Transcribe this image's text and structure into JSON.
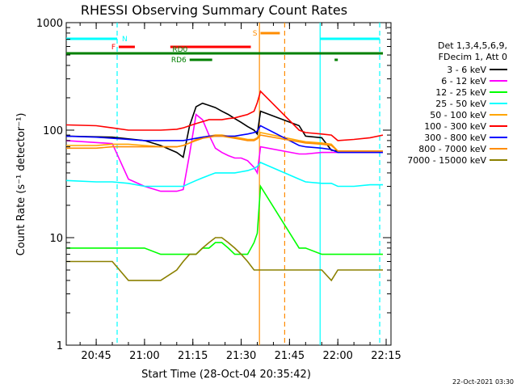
{
  "chart_data": {
    "type": "line",
    "title": "RHESSI Observing Summary Count Rates",
    "xlabel": "Start Time (28-Oct-04 20:35:42)",
    "ylabel": "Count Rate (s⁻¹ detector⁻¹)",
    "xlim": [
      "20:35:42",
      "22:16:30"
    ],
    "ylim": [
      1,
      1000
    ],
    "yscale": "log",
    "grid": false,
    "legend_position": "right",
    "x_ticks": [
      "20:45",
      "21:00",
      "21:15",
      "21:30",
      "21:45",
      "22:00",
      "22:15"
    ],
    "y_ticks": [
      "1",
      "10",
      "100",
      "1000"
    ],
    "legend_header": [
      "Det 1,3,4,5,6,9,",
      "FDecim 1, Att 0"
    ],
    "footer_date": "22-Oct-2021 03:30",
    "series": [
      {
        "name": "3 - 6 keV",
        "color": "#000000",
        "x": [
          "20:35:42",
          "20:50",
          "20:55",
          "21:00",
          "21:05",
          "21:10",
          "21:12",
          "21:14",
          "21:16",
          "21:18",
          "21:20",
          "21:22",
          "21:24",
          "21:26",
          "21:28",
          "21:30",
          "21:32",
          "21:34",
          "21:35",
          "21:36",
          "21:48",
          "21:50",
          "21:55",
          "21:58",
          "22:00",
          "22:05",
          "22:10",
          "22:14"
        ],
        "y": [
          88,
          86,
          83,
          80,
          72,
          62,
          56,
          110,
          165,
          178,
          170,
          162,
          150,
          140,
          128,
          118,
          108,
          100,
          92,
          150,
          110,
          88,
          85,
          65,
          64,
          64,
          64,
          64
        ]
      },
      {
        "name": "6 - 12 keV",
        "color": "#ff00ff",
        "x": [
          "20:35:42",
          "20:50",
          "20:55",
          "21:00",
          "21:05",
          "21:10",
          "21:12",
          "21:14",
          "21:16",
          "21:18",
          "21:20",
          "21:22",
          "21:24",
          "21:26",
          "21:28",
          "21:30",
          "21:32",
          "21:34",
          "21:35",
          "21:36",
          "21:48",
          "21:50",
          "21:55",
          "21:58",
          "22:00",
          "22:05",
          "22:10",
          "22:14"
        ],
        "y": [
          80,
          75,
          35,
          30,
          27,
          27,
          28,
          60,
          140,
          125,
          90,
          68,
          62,
          58,
          55,
          55,
          52,
          45,
          40,
          70,
          60,
          60,
          62,
          62,
          62,
          62,
          62,
          62
        ]
      },
      {
        "name": "12 - 25 keV",
        "color": "#00ff00",
        "x": [
          "20:35:42",
          "20:45",
          "20:50",
          "20:55",
          "21:00",
          "21:05",
          "21:10",
          "21:12",
          "21:14",
          "21:16",
          "21:18",
          "21:20",
          "21:22",
          "21:24",
          "21:26",
          "21:28",
          "21:30",
          "21:32",
          "21:34",
          "21:35",
          "21:36",
          "21:48",
          "21:50",
          "21:55",
          "21:58",
          "22:00",
          "22:05",
          "22:10",
          "22:14"
        ],
        "y": [
          8,
          8,
          8,
          8,
          8,
          7,
          7,
          7,
          7,
          7,
          8,
          8,
          9,
          9,
          8,
          7,
          7,
          7,
          9,
          11,
          30,
          8,
          8,
          7,
          7,
          7,
          7,
          7,
          7
        ]
      },
      {
        "name": "25 - 50 keV",
        "color": "#00ffff",
        "x": [
          "20:35:42",
          "20:45",
          "20:50",
          "20:55",
          "21:00",
          "21:05",
          "21:10",
          "21:12",
          "21:14",
          "21:16",
          "21:18",
          "21:20",
          "21:22",
          "21:24",
          "21:26",
          "21:28",
          "21:30",
          "21:32",
          "21:34",
          "21:35",
          "21:36",
          "21:48",
          "21:50",
          "21:55",
          "21:58",
          "22:00",
          "22:05",
          "22:10",
          "22:14"
        ],
        "y": [
          34,
          33,
          33,
          32,
          30,
          30,
          30,
          30,
          32,
          34,
          36,
          38,
          40,
          40,
          40,
          40,
          41,
          42,
          44,
          46,
          50,
          35,
          33,
          32,
          32,
          30,
          30,
          31,
          31
        ]
      },
      {
        "name": "50 - 100 keV",
        "color": "#ffa500",
        "x": [
          "20:35:42",
          "20:45",
          "20:50",
          "20:55",
          "21:00",
          "21:05",
          "21:10",
          "21:12",
          "21:14",
          "21:16",
          "21:18",
          "21:20",
          "21:22",
          "21:24",
          "21:26",
          "21:28",
          "21:30",
          "21:32",
          "21:34",
          "21:35",
          "21:36",
          "21:48",
          "21:50",
          "21:55",
          "21:58",
          "22:00",
          "22:05",
          "22:10",
          "22:14"
        ],
        "y": [
          72,
          72,
          74,
          74,
          72,
          70,
          70,
          72,
          76,
          82,
          86,
          88,
          90,
          90,
          88,
          86,
          84,
          82,
          82,
          85,
          95,
          80,
          78,
          76,
          74,
          64,
          64,
          64,
          64
        ]
      },
      {
        "name": "100 - 300 keV",
        "color": "#ff0000",
        "x": [
          "20:35:42",
          "20:45",
          "20:50",
          "20:55",
          "21:00",
          "21:05",
          "21:10",
          "21:12",
          "21:14",
          "21:16",
          "21:18",
          "21:20",
          "21:22",
          "21:24",
          "21:26",
          "21:28",
          "21:30",
          "21:32",
          "21:34",
          "21:35",
          "21:36",
          "21:48",
          "21:50",
          "21:55",
          "21:58",
          "22:00",
          "22:05",
          "22:10",
          "22:14"
        ],
        "y": [
          112,
          110,
          105,
          100,
          100,
          100,
          102,
          105,
          110,
          115,
          120,
          125,
          125,
          125,
          128,
          130,
          135,
          140,
          150,
          180,
          230,
          100,
          95,
          92,
          90,
          80,
          82,
          85,
          90
        ]
      },
      {
        "name": "300 - 800 keV",
        "color": "#0000ff",
        "x": [
          "20:35:42",
          "20:45",
          "20:50",
          "20:55",
          "21:00",
          "21:05",
          "21:10",
          "21:12",
          "21:14",
          "21:16",
          "21:18",
          "21:20",
          "21:22",
          "21:24",
          "21:26",
          "21:28",
          "21:30",
          "21:32",
          "21:34",
          "21:35",
          "21:36",
          "21:48",
          "21:50",
          "21:55",
          "21:58",
          "22:00",
          "22:05",
          "22:10",
          "22:14"
        ],
        "y": [
          88,
          86,
          84,
          82,
          80,
          80,
          80,
          80,
          82,
          84,
          86,
          88,
          88,
          88,
          88,
          88,
          90,
          92,
          95,
          98,
          110,
          72,
          70,
          68,
          66,
          62,
          62,
          62,
          62
        ]
      },
      {
        "name": "800 - 7000 keV",
        "color": "#ff8c00",
        "x": [
          "20:35:42",
          "20:45",
          "20:50",
          "20:55",
          "21:00",
          "21:05",
          "21:10",
          "21:12",
          "21:14",
          "21:16",
          "21:18",
          "21:20",
          "21:22",
          "21:24",
          "21:26",
          "21:28",
          "21:30",
          "21:32",
          "21:34",
          "21:35",
          "21:36",
          "21:48",
          "21:50",
          "21:55",
          "21:58",
          "22:00",
          "22:05",
          "22:10",
          "22:14"
        ],
        "y": [
          68,
          68,
          70,
          70,
          70,
          70,
          70,
          72,
          76,
          80,
          84,
          86,
          88,
          88,
          86,
          84,
          82,
          80,
          80,
          83,
          90,
          78,
          76,
          74,
          72,
          64,
          64,
          64,
          64
        ]
      },
      {
        "name": "7000 - 15000 keV",
        "color": "#8b8000",
        "x": [
          "20:35:42",
          "20:45",
          "20:50",
          "20:55",
          "21:00",
          "21:05",
          "21:10",
          "21:12",
          "21:14",
          "21:16",
          "21:18",
          "21:20",
          "21:22",
          "21:24",
          "21:26",
          "21:28",
          "21:30",
          "21:32",
          "21:34",
          "21:35",
          "21:36",
          "21:48",
          "21:50",
          "21:55",
          "21:58",
          "22:00",
          "22:05",
          "22:10",
          "22:14"
        ],
        "y": [
          6,
          6,
          6,
          4,
          4,
          4,
          5,
          6,
          7,
          7,
          8,
          9,
          10,
          10,
          9,
          8,
          7,
          6,
          5,
          5,
          5,
          5,
          5,
          5,
          4,
          5,
          5,
          5,
          5
        ]
      }
    ],
    "annotations": [
      {
        "label": "N",
        "color": "#00ffff",
        "kind": "bar",
        "row": 1,
        "x_start": "20:35:42",
        "x_end": "20:51:30"
      },
      {
        "label": "",
        "color": "#00ffff",
        "kind": "bar",
        "row": 1,
        "x_start": "21:54:30",
        "x_end": "22:13:00"
      },
      {
        "label": "F",
        "color": "#ff0000",
        "kind": "bar",
        "row": 2,
        "x_start": "20:52:00",
        "x_end": "20:57:00"
      },
      {
        "label": "",
        "color": "#ff0000",
        "kind": "bar",
        "row": 2,
        "x_start": "21:08:00",
        "x_end": "21:33:00"
      },
      {
        "label": "S",
        "color": "#ff8c00",
        "kind": "bar",
        "row": 0,
        "x_start": "21:36:00",
        "x_end": "21:42:00"
      },
      {
        "label": "RD0",
        "color": "#008000",
        "kind": "bar",
        "row": 3,
        "x_start": "20:35:42",
        "x_end": "22:14:00"
      },
      {
        "label": "RD6",
        "color": "#008000",
        "kind": "bar",
        "row": 4,
        "x_start": "21:14:00",
        "x_end": "21:21:00"
      },
      {
        "label": "",
        "color": "#008000",
        "kind": "bar",
        "row": 4,
        "x_start": "21:59:00",
        "x_end": "22:00:00"
      }
    ],
    "vertical_lines": [
      {
        "x": "20:51:30",
        "color": "#00ffff",
        "style": "dashed"
      },
      {
        "x": "21:35:40",
        "color": "#ff8c00",
        "style": "solid"
      },
      {
        "x": "21:43:30",
        "color": "#ff8c00",
        "style": "dashed"
      },
      {
        "x": "21:54:30",
        "color": "#00ffff",
        "style": "solid"
      },
      {
        "x": "22:13:00",
        "color": "#00ffff",
        "style": "dashed"
      }
    ]
  }
}
